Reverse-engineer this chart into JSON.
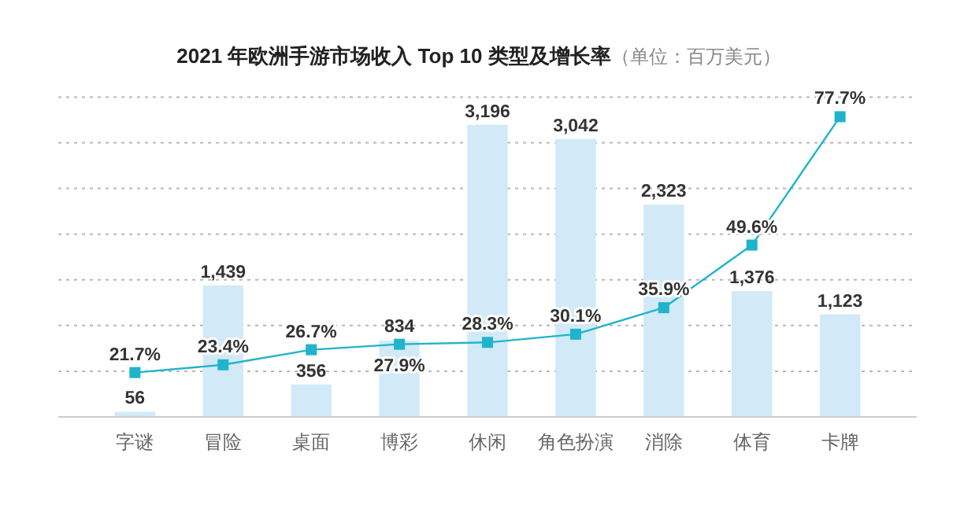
{
  "chart_data": {
    "type": "bar",
    "title": "2021 年欧洲手游市场收入 Top 10 类型及增长率",
    "subtitle": "（单位：百万美元）",
    "categories": [
      "字谜",
      "冒险",
      "桌面",
      "博彩",
      "休闲",
      "角色扮演",
      "消除",
      "体育",
      "卡牌"
    ],
    "series": [
      {
        "color": "#d2eaf7",
        "values": [
          56,
          1439,
          356,
          834,
          3196,
          3042,
          2323,
          1376,
          1123
        ],
        "value_labels": [
          "56",
          "1,439",
          "356",
          "834",
          "3,196",
          "3,042",
          "2,323",
          "1,376",
          "1,123"
        ]
      },
      {
        "type": "line",
        "axis": "y2",
        "color": "#1fb4cb",
        "values": [
          21.7,
          23.4,
          26.7,
          27.9,
          28.3,
          30.1,
          35.9,
          49.6,
          77.7
        ],
        "value_labels": [
          "21.7%",
          "23.4%",
          "26.7%",
          "27.9%",
          "28.3%",
          "30.1%",
          "35.9%",
          "49.6%",
          "77.7%"
        ]
      }
    ],
    "ylim": [
      0,
      3500
    ],
    "yticks": [
      {
        "value": 0,
        "label": null
      },
      {
        "value": 500,
        "label": null
      },
      {
        "value": 1000,
        "label": null
      },
      {
        "value": 1500,
        "label": null
      },
      {
        "value": 2000,
        "label": null
      },
      {
        "value": 2500,
        "label": null
      },
      {
        "value": 3000,
        "label": null
      },
      {
        "value": 3500,
        "label": null
      }
    ],
    "y2lim": [
      12,
      82
    ],
    "grid": "y",
    "tick_labels": "x",
    "marker": "square",
    "line_style": "solid"
  }
}
